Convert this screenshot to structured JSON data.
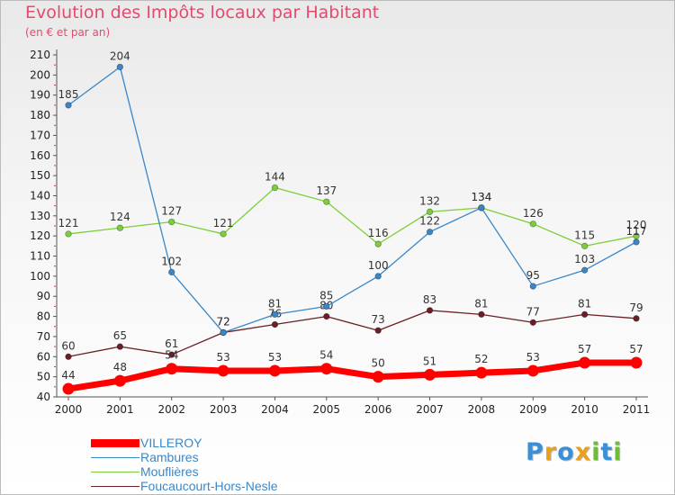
{
  "title": "Evolution des Impôts locaux par Habitant",
  "subtitle": "(en € et par an)",
  "chart_data": {
    "type": "line",
    "title": "Evolution des Impôts locaux par Habitant",
    "subtitle": "(en € et par an)",
    "xlabel": "",
    "ylabel": "",
    "x": [
      "2000",
      "2001",
      "2002",
      "2003",
      "2004",
      "2005",
      "2006",
      "2007",
      "2008",
      "2009",
      "2010",
      "2011"
    ],
    "ylim": [
      40,
      210
    ],
    "yticks": [
      40,
      50,
      60,
      70,
      80,
      90,
      100,
      110,
      120,
      130,
      140,
      150,
      160,
      170,
      180,
      190,
      200,
      210
    ],
    "grid": false,
    "legend_position": "bottom-left",
    "series": [
      {
        "name": "VILLEROY",
        "color": "#ff0000",
        "values": [
          44,
          48,
          54,
          53,
          53,
          54,
          50,
          51,
          52,
          53,
          57,
          57
        ]
      },
      {
        "name": "Rambures",
        "color": "#3a87c8",
        "values": [
          185,
          204,
          102,
          72,
          81,
          85,
          100,
          122,
          134,
          95,
          103,
          117
        ]
      },
      {
        "name": "Mouflières",
        "color": "#7ccf3a",
        "values": [
          121,
          124,
          127,
          121,
          144,
          137,
          116,
          132,
          134,
          126,
          115,
          120
        ]
      },
      {
        "name": "Foucaucourt-Hors-Nesle",
        "color": "#6b1f24",
        "values": [
          60,
          65,
          61,
          72,
          76,
          80,
          73,
          83,
          81,
          77,
          81,
          79
        ]
      }
    ]
  },
  "legend": {
    "items": [
      {
        "label": "VILLEROY",
        "color": "#ff0000"
      },
      {
        "label": "Rambures",
        "color": "#3a87c8"
      },
      {
        "label": "Mouflières",
        "color": "#7ccf3a"
      },
      {
        "label": "Foucaucourt-Hors-Nesle",
        "color": "#6b1f24"
      }
    ]
  },
  "logo": {
    "letters": [
      "P",
      "r",
      "o",
      "x",
      "i",
      "t",
      "i"
    ],
    "colors": [
      "#3b8fd6",
      "#e8a01f",
      "#3b8fd6",
      "#e8a01f",
      "#6cbf2e",
      "#3b8fd6",
      "#6cbf2e"
    ]
  }
}
